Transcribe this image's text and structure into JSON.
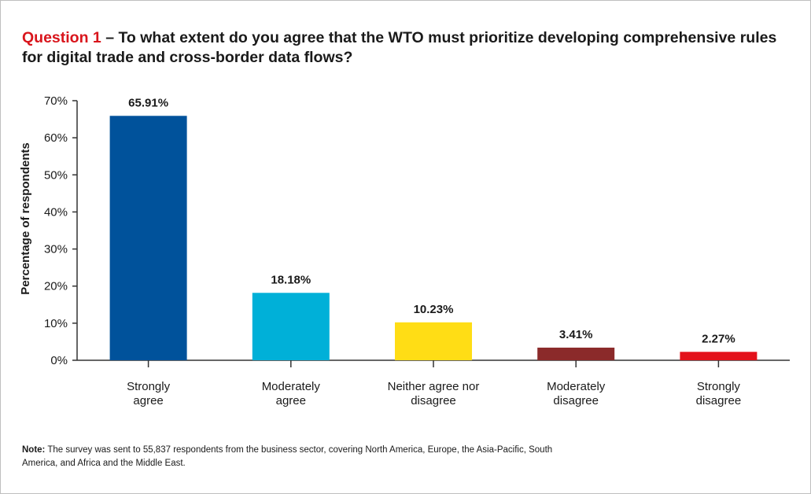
{
  "title": {
    "question_number": "Question 1",
    "question_text": " – To what extent do you agree that the WTO must prioritize developing comprehensive rules for digital trade and cross-border data flows?"
  },
  "note": {
    "label": "Note:",
    "text": " The survey was sent to 55,837 respondents from the business sector, covering North America, Europe, the Asia-Pacific, South America, and Africa and the Middle East."
  },
  "chart_data": {
    "type": "bar",
    "title": "Question 1 – To what extent do you agree that the WTO must prioritize developing comprehensive rules for digital trade and cross-border data flows?",
    "xlabel": "",
    "ylabel": "Percentage of respondents",
    "ylim": [
      0,
      70
    ],
    "yticks": [
      0,
      10,
      20,
      30,
      40,
      50,
      60,
      70
    ],
    "ytick_labels": [
      "0%",
      "10%",
      "20%",
      "30%",
      "40%",
      "50%",
      "60%",
      "70%"
    ],
    "categories": [
      [
        "Strongly",
        "agree"
      ],
      [
        "Moderately",
        "agree"
      ],
      [
        "Neither agree nor",
        "disagree"
      ],
      [
        "Moderately",
        "disagree"
      ],
      [
        "Strongly",
        "disagree"
      ]
    ],
    "values": [
      65.91,
      18.18,
      10.23,
      3.41,
      2.27
    ],
    "value_labels": [
      "65.91%",
      "18.18%",
      "10.23%",
      "3.41%",
      "2.27%"
    ],
    "colors": [
      "#00529b",
      "#00b0d8",
      "#ffdd15",
      "#8b2a2a",
      "#e3121b"
    ],
    "grid": false,
    "legend": "none"
  }
}
